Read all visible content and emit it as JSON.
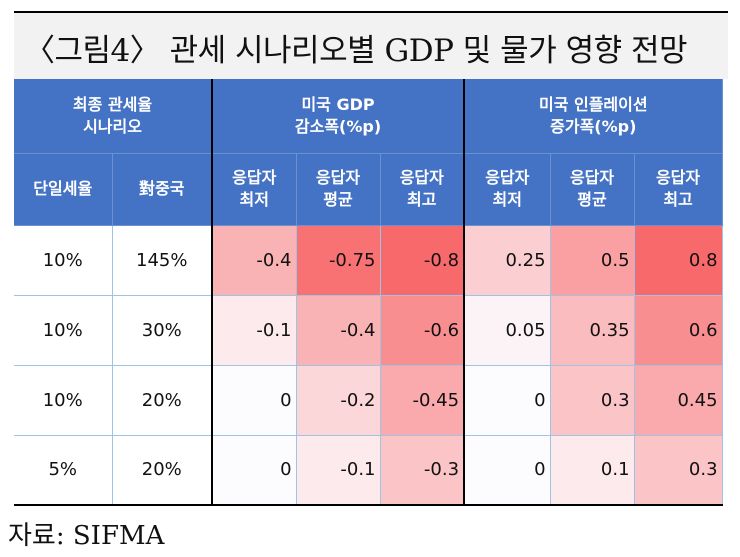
{
  "title": "〈그림4〉 관세 시나리오별 GDP 및 물가 영향 전망",
  "header": {
    "scenario": "최종 관세율\n시나리오",
    "gdp_group": "미국 GDP\n감소폭(%p)",
    "infl_group": "미국 인플레이션\n증가폭(%p)",
    "col_single": "단일세율",
    "col_china": "對중국",
    "sub_min": "응답자\n최저",
    "sub_avg": "응답자\n평균",
    "sub_max": "응답자\n최고"
  },
  "rows": [
    {
      "single": "10%",
      "china": "145%",
      "gdp_min": "-0.4",
      "gdp_avg": "-0.75",
      "gdp_max": "-0.8",
      "inf_min": "0.25",
      "inf_avg": "0.5",
      "inf_max": "0.8"
    },
    {
      "single": "10%",
      "china": "30%",
      "gdp_min": "-0.1",
      "gdp_avg": "-0.4",
      "gdp_max": "-0.6",
      "inf_min": "0.05",
      "inf_avg": "0.35",
      "inf_max": "0.6"
    },
    {
      "single": "10%",
      "china": "20%",
      "gdp_min": "0",
      "gdp_avg": "-0.2",
      "gdp_max": "-0.45",
      "inf_min": "0",
      "inf_avg": "0.3",
      "inf_max": "0.45"
    },
    {
      "single": "5%",
      "china": "20%",
      "gdp_min": "0",
      "gdp_avg": "-0.1",
      "gdp_max": "-0.3",
      "inf_min": "0",
      "inf_avg": "0.1",
      "inf_max": "0.3"
    }
  ],
  "colors": {
    "header_bg": "#4472c4",
    "heat_low": "#fcfcff",
    "heat_high": "#f8696b"
  },
  "source": "자료: SIFMA"
}
